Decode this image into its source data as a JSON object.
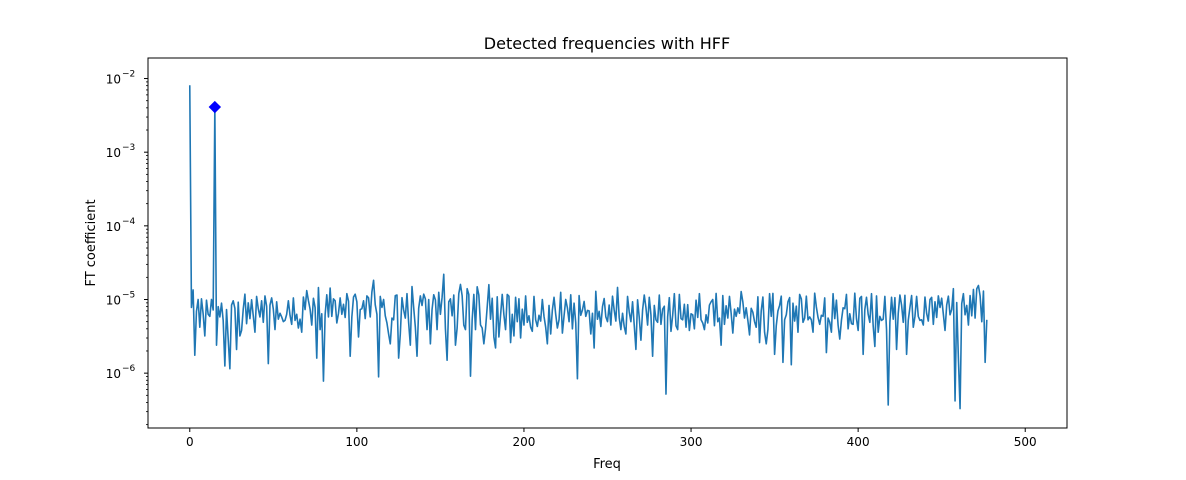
{
  "chart_data": {
    "type": "line",
    "title": "Detected frequencies with HFF",
    "xlabel": "Freq",
    "ylabel": "FT coefficient",
    "xscale": "linear",
    "yscale": "log",
    "xlim": [
      -25,
      525
    ],
    "ylim": [
      1.8e-07,
      0.019
    ],
    "grid": false,
    "line_color": "#1f77b4",
    "marker_color": "#0000ff",
    "xticks": [
      {
        "value": 0,
        "label": "0"
      },
      {
        "value": 100,
        "label": "100"
      },
      {
        "value": 200,
        "label": "200"
      },
      {
        "value": 300,
        "label": "300"
      },
      {
        "value": 400,
        "label": "400"
      },
      {
        "value": 500,
        "label": "500"
      }
    ],
    "yticks": [
      {
        "value": 1e-06,
        "base": "10",
        "exp": "−6"
      },
      {
        "value": 1e-05,
        "base": "10",
        "exp": "−5"
      },
      {
        "value": 0.0001,
        "base": "10",
        "exp": "−4"
      },
      {
        "value": 0.001,
        "base": "10",
        "exp": "−3"
      },
      {
        "value": 0.01,
        "base": "10",
        "exp": "−2"
      }
    ],
    "series": [
      {
        "x_start": 0,
        "x_step": 1,
        "values": [
          0.0081,
          7.8e-06,
          1.35e-05,
          1.75e-06,
          6.9e-06,
          1e-05,
          4.2e-06,
          1.02e-05,
          6.4e-06,
          3.2e-06,
          9.8e-06,
          6.3e-06,
          5.9e-06,
          1e-05,
          7.2e-06,
          0.0041,
          2.4e-06,
          8e-06,
          5.8e-06,
          8.9e-06,
          5.2e-06,
          1.25e-06,
          7.3e-06,
          2.9e-06,
          1.15e-06,
          8.4e-06,
          9.6e-06,
          7.6e-06,
          2.1e-06,
          9.2e-06,
          3.2e-06,
          3.8e-06,
          7.4e-06,
          1.18e-05,
          4.7e-06,
          9e-06,
          5.5e-06,
          9.9e-06,
          6e-06,
          3.6e-06,
          1.1e-05,
          7.5e-06,
          5.8e-06,
          9.6e-06,
          4.9e-06,
          1.12e-05,
          8.1e-06,
          1.35e-06,
          8.4e-06,
          1.05e-05,
          7.4e-06,
          3.9e-06,
          9.3e-06,
          5.4e-06,
          6.5e-06,
          5.8e-06,
          5e-06,
          5.2e-06,
          6.3e-06,
          9.6e-06,
          6.1e-06,
          4.6e-06,
          1.05e-05,
          5.2e-06,
          6.3e-06,
          4.1e-06,
          5.4e-06,
          3.6e-06,
          1.08e-05,
          7.3e-06,
          1.32e-05,
          9.7e-06,
          7.4e-06,
          4.5e-06,
          1.04e-05,
          7.8e-06,
          1.6e-06,
          1.45e-05,
          3.9e-06,
          6.4e-06,
          7.8e-07,
          6.2e-06,
          1.16e-05,
          5.8e-06,
          1.43e-05,
          5.9e-06,
          1.02e-05,
          9.6e-06,
          4.8e-06,
          6.5e-06,
          1.05e-05,
          6.3e-06,
          8.6e-06,
          5.7e-06,
          1.2e-05,
          9.5e-06,
          1.7e-06,
          5.8e-06,
          1.08e-05,
          1.18e-05,
          9.3e-06,
          3.1e-06,
          7.3e-06,
          7.5e-06,
          9.6e-06,
          5.5e-06,
          1.12e-05,
          1.05e-05,
          5.8e-06,
          1.27e-05,
          1.82e-05,
          8.5e-06,
          6.3e-06,
          8.9e-07,
          1.1e-05,
          7.8e-06,
          1e-05,
          6e-06,
          4.8e-06,
          3.4e-06,
          2.5e-06,
          5.6e-06,
          5.3e-06,
          1.13e-05,
          1.15e-05,
          1.6e-06,
          3.4e-06,
          1.06e-05,
          7.2e-06,
          5.6e-06,
          1.2e-05,
          4.8e-06,
          2.4e-06,
          1.5e-05,
          7.8e-06,
          4.2e-06,
          1.7e-06,
          7.6e-06,
          1.12e-05,
          8.3e-06,
          1.18e-05,
          1.02e-05,
          3.9e-06,
          1e-05,
          2.5e-06,
          7.3e-06,
          1.16e-05,
          9.9e-06,
          3.9e-06,
          1.25e-05,
          6.3e-06,
          1.07e-05,
          2.2e-05,
          4e-06,
          1.5e-06,
          9.3e-06,
          1.02e-05,
          6e-06,
          1.15e-05,
          2.4e-06,
          4.1e-06,
          1.2e-05,
          1.6e-05,
          1.13e-05,
          4.5e-06,
          3.9e-06,
          1.4e-05,
          1.17e-05,
          9.1e-07,
          5.3e-06,
          1.17e-05,
          3.9e-06,
          1.49e-05,
          1.15e-05,
          4.5e-06,
          4.1e-06,
          2.5e-06,
          4e-06,
          7.9e-06,
          1.59e-05,
          5.4e-06,
          1.04e-05,
          3.1e-06,
          2.2e-06,
          1.09e-05,
          3.1e-06,
          6.1e-06,
          1.17e-05,
          6.2e-06,
          3.9e-06,
          1.17e-05,
          1.11e-05,
          2.6e-06,
          6.3e-06,
          3.2e-06,
          1.07e-05,
          5e-06,
          1.02e-05,
          3e-06,
          7.4e-06,
          4.5e-06,
          1.12e-05,
          4.9e-06,
          6e-06,
          4.2e-06,
          3.7e-06,
          1.1e-05,
          5.3e-06,
          4.3e-06,
          6.1e-06,
          5.1e-06,
          1e-05,
          5.9e-06,
          4.2e-06,
          2.5e-06,
          8.3e-06,
          3.4e-06,
          7.2e-06,
          1.07e-05,
          6.3e-06,
          4.1e-06,
          5.3e-06,
          1.25e-05,
          3.5e-06,
          6e-06,
          1e-05,
          7.7e-06,
          5e-06,
          1.16e-05,
          4e-06,
          8.9e-06,
          4.8e-06,
          8.4e-07,
          1.13e-05,
          6.1e-06,
          7.2e-06,
          9.4e-06,
          5.9e-06,
          7.1e-06,
          7e-06,
          3.4e-06,
          6.5e-06,
          2.2e-06,
          1.29e-05,
          5.4e-06,
          6.9e-06,
          4.3e-06,
          8e-06,
          1.03e-05,
          5.8e-06,
          5e-06,
          8.4e-06,
          4.5e-06,
          1.11e-05,
          7.2e-06,
          5.1e-06,
          1.46e-05,
          5.7e-06,
          3.9e-06,
          6.5e-06,
          4.3e-06,
          3.4e-06,
          1.1e-05,
          6.8e-06,
          5e-06,
          9.3e-06,
          4.5e-06,
          2.1e-06,
          9.9e-06,
          5.7e-06,
          2.8e-06,
          7.2e-06,
          1.15e-05,
          7.8e-06,
          4.5e-06,
          1.07e-05,
          6.2e-06,
          1.7e-06,
          8.3e-06,
          5.3e-06,
          4.9e-06,
          1.15e-05,
          4.6e-06,
          7.4e-06,
          8.1e-06,
          5.2e-07,
          5.8e-06,
          1.06e-05,
          3.7e-06,
          6.1e-06,
          1.2e-05,
          4.4e-06,
          3.9e-06,
          1.17e-05,
          5.5e-06,
          5.3e-06,
          8.6e-06,
          4.2e-06,
          8.5e-06,
          3.8e-06,
          6.4e-06,
          6.2e-06,
          4e-06,
          9.8e-06,
          5.7e-06,
          1.2e-05,
          5.3e-06,
          4.8e-06,
          3.9e-06,
          6.2e-06,
          4.8e-06,
          8.4e-06,
          9.3e-06,
          1e-05,
          4.4e-06,
          1.21e-05,
          5e-06,
          5.6e-06,
          2.4e-06,
          1.13e-05,
          4.6e-06,
          8.2e-06,
          5.6e-06,
          1.1e-05,
          6.5e-06,
          3.5e-06,
          7.4e-06,
          5.9e-06,
          7.7e-06,
          6.5e-06,
          1.28e-05,
          9.3e-06,
          5.6e-06,
          7.7e-06,
          5.2e-06,
          3.3e-06,
          7.6e-06,
          6.7e-06,
          5e-06,
          4.2e-06,
          1.09e-05,
          2.6e-06,
          7e-06,
          1.08e-05,
          3.6e-06,
          2.5e-06,
          3.9e-06,
          1.2e-05,
          5.9e-06,
          1.21e-05,
          1.8e-06,
          4.4e-06,
          7e-06,
          8.3e-06,
          1.11e-05,
          1.4e-06,
          5.3e-06,
          6.2e-06,
          9.3e-06,
          1.06e-05,
          1.3e-06,
          8.9e-06,
          5.1e-06,
          8.1e-06,
          3.6e-06,
          1.17e-05,
          1.02e-05,
          4.9e-06,
          5.6e-06,
          1.11e-05,
          5.3e-06,
          5.8e-06,
          5.3e-06,
          3.6e-06,
          1.22e-05,
          7.9e-06,
          5.7e-06,
          4.6e-06,
          6.1e-06,
          5.9e-06,
          1.05e-05,
          1.9e-06,
          5.6e-06,
          4.9e-06,
          3.6e-06,
          1.2e-05,
          5.5e-06,
          9.8e-06,
          4.5e-06,
          2.9e-06,
          5.2e-06,
          7.7e-06,
          7.5e-06,
          1.17e-05,
          4e-06,
          6.4e-06,
          4.7e-06,
          4.6e-06,
          1.22e-05,
          5.5e-06,
          3.8e-06,
          1.04e-05,
          1.1e-05,
          1.8e-06,
          7.3e-06,
          1.07e-05,
          6.3e-06,
          4.9e-06,
          1.2e-05,
          4.4e-06,
          2.3e-06,
          1.12e-05,
          3.6e-06,
          5.9e-06,
          5.2e-06,
          5.4e-06,
          1.1e-05,
          3.9e-06,
          3.7e-07,
          4.9e-06,
          1.07e-05,
          5.4e-06,
          1.06e-05,
          2.1e-06,
          6.5e-06,
          1.15e-05,
          8.4e-06,
          4.9e-06,
          1.14e-05,
          1.8e-06,
          5.2e-06,
          7.8e-06,
          1.13e-05,
          4.2e-06,
          5.9e-06,
          1.1e-05,
          5.9e-06,
          5.2e-06,
          5.3e-06,
          4.5e-06,
          1.08e-05,
          6.5e-06,
          5.1e-06,
          1e-05,
          1.07e-05,
          4.6e-06,
          9.3e-06,
          5.7e-06,
          1.12e-05,
          7.8e-06,
          1.04e-05,
          6.3e-06,
          3.8e-06,
          8.4e-06,
          1.11e-05,
          6.2e-06,
          7.3e-06,
          1.4e-05,
          4.2e-07,
          9.1e-06,
          1.6e-06,
          3.3e-07,
          8.8e-06,
          1.2e-05,
          6.2e-06,
          8.3e-06,
          4.5e-06,
          1.13e-05,
          6e-06,
          1.37e-05,
          5.6e-06,
          1.4e-05,
          1.55e-05,
          1.12e-05,
          5e-06,
          1.3e-05,
          1.4e-06,
          5.3e-06
        ]
      }
    ],
    "markers": [
      {
        "x": 15,
        "y": 0.0041,
        "shape": "diamond"
      }
    ]
  }
}
